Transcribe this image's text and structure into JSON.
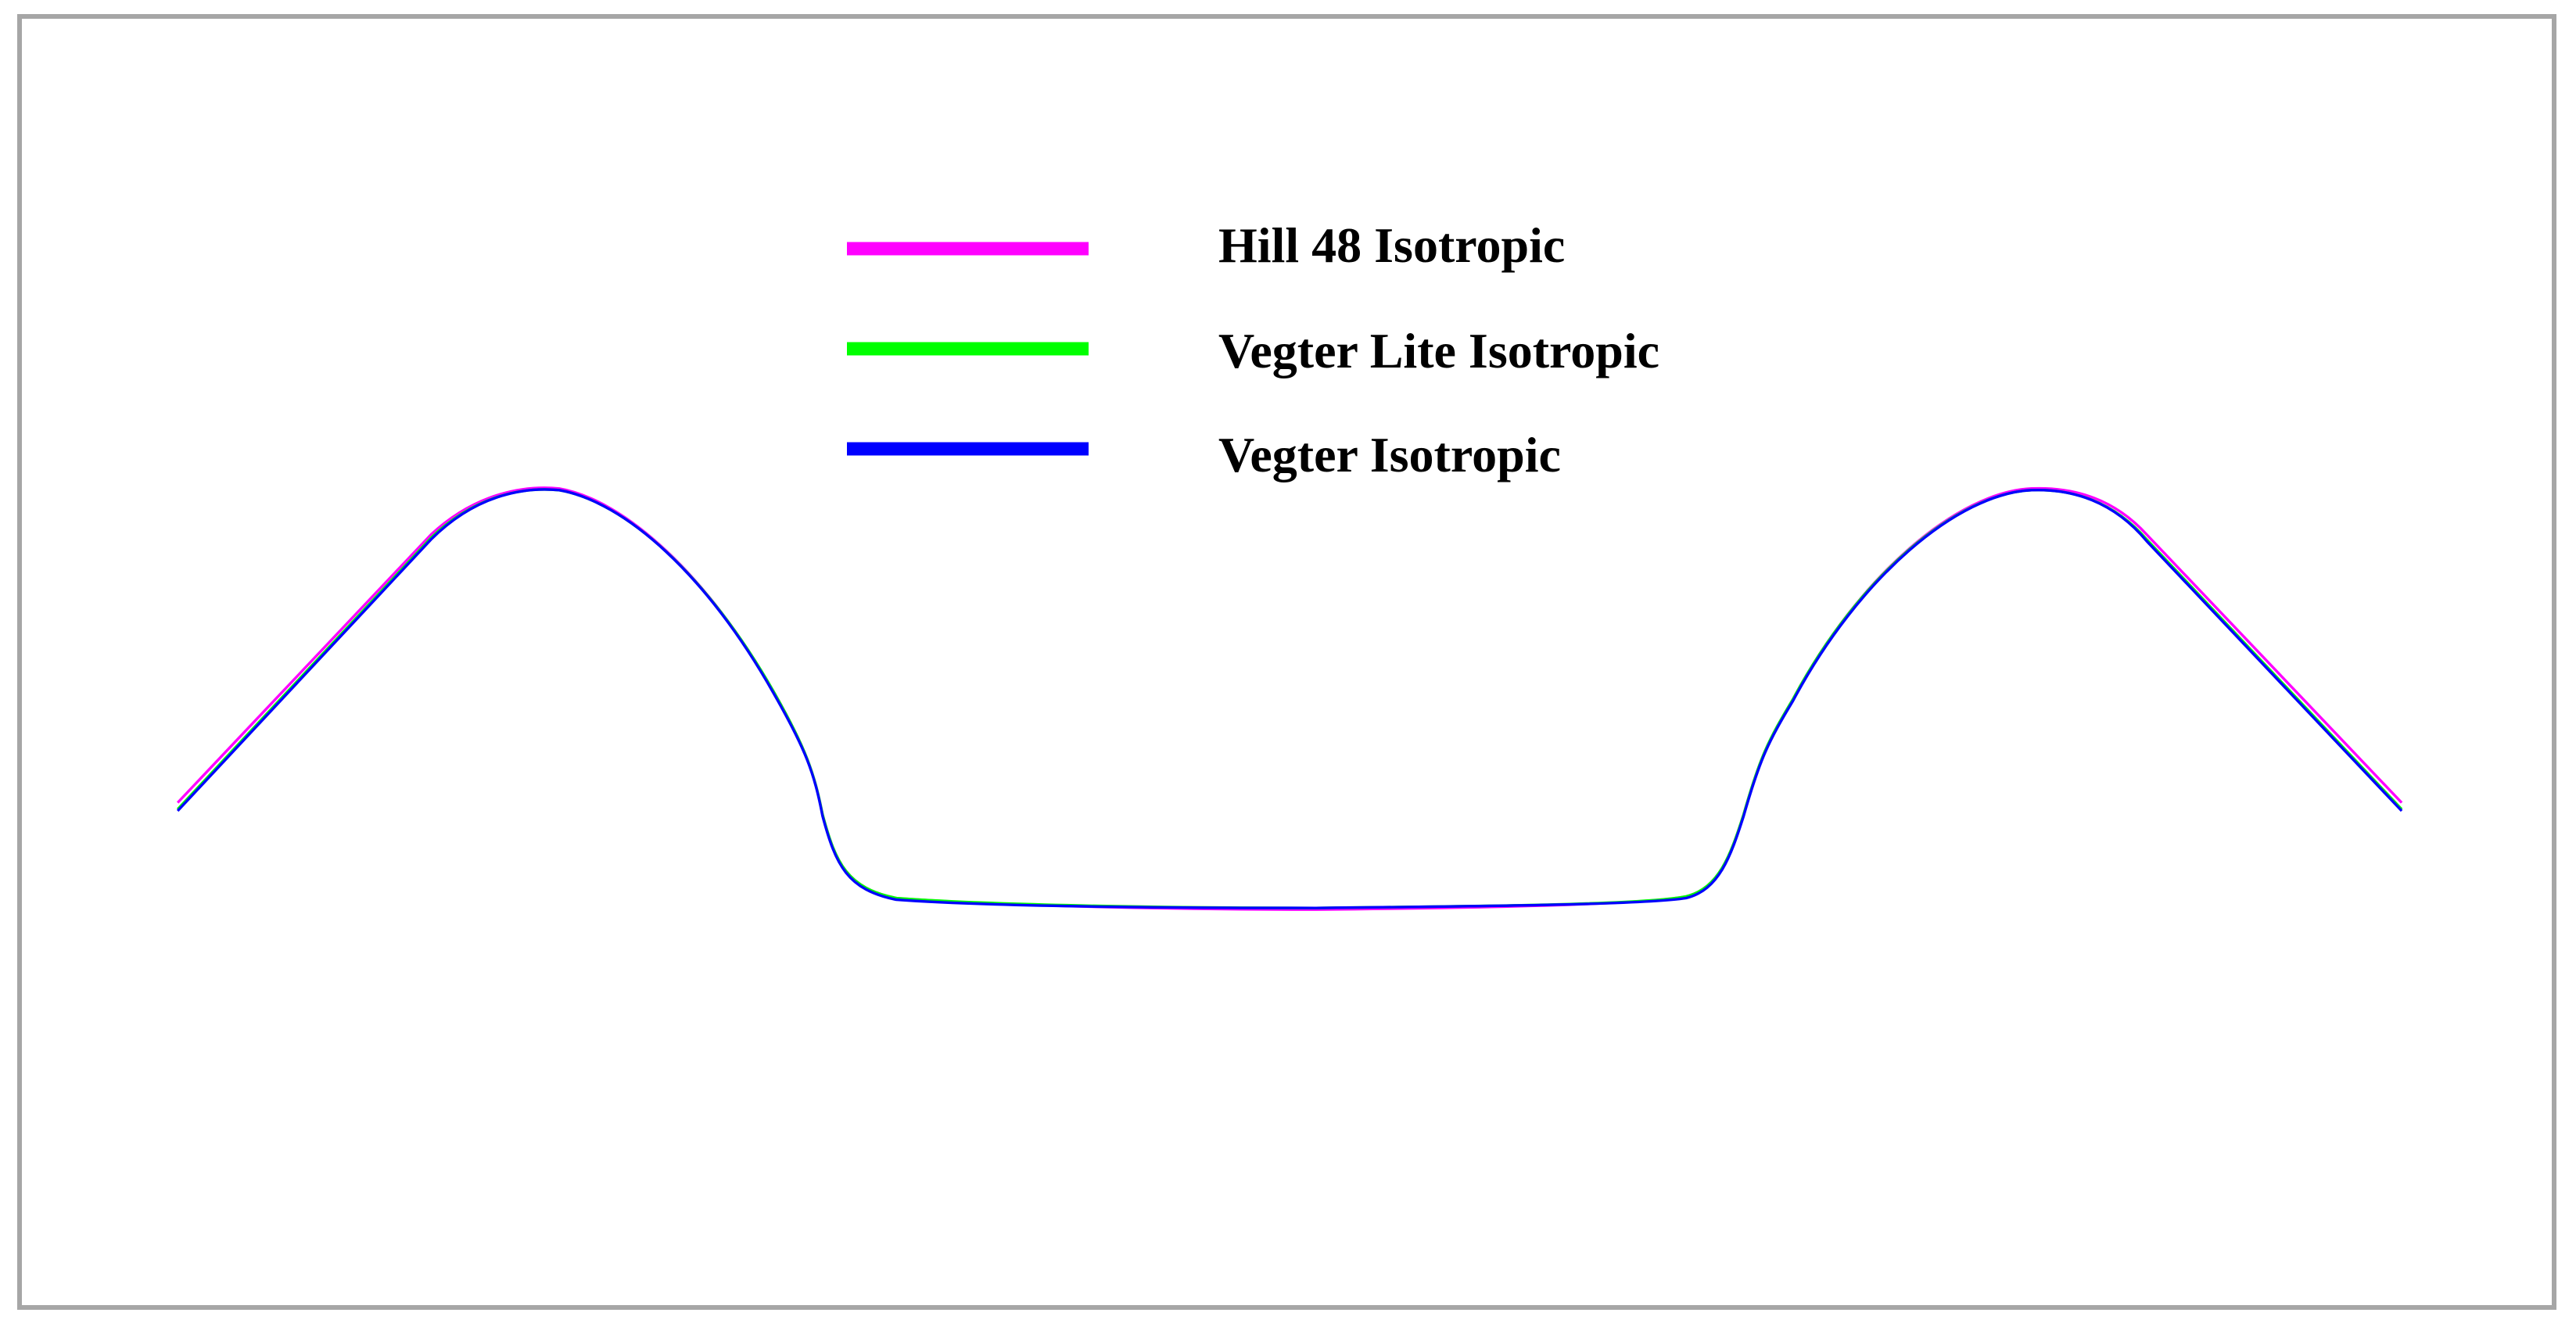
{
  "legend": {
    "items": [
      {
        "label": "Hill 48 Isotropic",
        "color": "#ff00ff"
      },
      {
        "label": "Vegter Lite Isotropic",
        "color": "#00ff00"
      },
      {
        "label": "Vegter Isotropic",
        "color": "#0000ff"
      }
    ]
  }
}
